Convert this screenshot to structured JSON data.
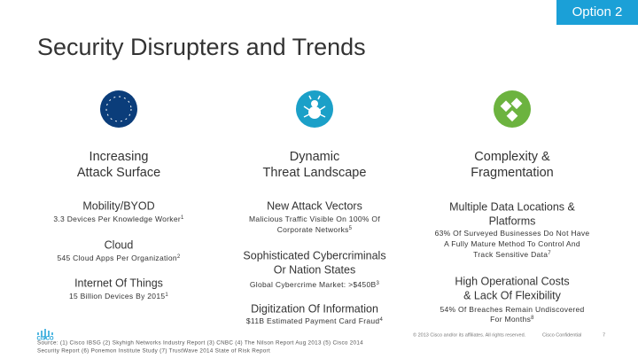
{
  "badge": "Option 2",
  "title": "Security Disrupters and Trends",
  "columns": [
    {
      "heading": [
        "Increasing",
        "Attack Surface"
      ],
      "items": [
        {
          "label": [
            "Mobility/BYOD"
          ],
          "detail": [
            "3.3 Devices Per Knowledge Worker"
          ],
          "note": "1"
        },
        {
          "label": [
            "Cloud"
          ],
          "detail": [
            "545 Cloud Apps Per Organization"
          ],
          "note": "2"
        },
        {
          "label": [
            "Internet Of Things"
          ],
          "detail": [
            "15 Billion Devices By 2015"
          ],
          "note": "1"
        }
      ]
    },
    {
      "heading": [
        "Dynamic",
        "Threat Landscape"
      ],
      "items": [
        {
          "label": [
            "New Attack Vectors"
          ],
          "detail": [
            "Malicious Traffic Visible On 100% Of",
            "Corporate Networks"
          ],
          "note": "5"
        },
        {
          "label": [
            "Sophisticated Cybercriminals",
            "Or Nation States"
          ],
          "detail": [
            "Global Cybercrime Market: >$450B"
          ],
          "note": "3"
        },
        {
          "label": [
            "Digitization Of Information"
          ],
          "detail": [
            "$11B Estimated Payment Card Fraud"
          ],
          "note": "4"
        }
      ]
    },
    {
      "heading": [
        "Complexity &",
        "Fragmentation"
      ],
      "items": [
        {
          "label": [
            "Multiple Data Locations &",
            "Platforms"
          ],
          "detail": [
            "63% Of Surveyed Businesses Do Not Have",
            "A Fully Mature Method To Control And",
            "Track Sensitive Data"
          ],
          "note": "7"
        },
        {
          "label": [
            "High Operational Costs",
            "& Lack Of Flexibility"
          ],
          "detail": [
            "54% Of Breaches Remain Undiscovered",
            "For Months"
          ],
          "note": "8"
        }
      ]
    }
  ],
  "logo": "CISCO",
  "source": [
    "Source: (1) Cisco IBSG (2) Skyhigh Networks Industry Report (3) CNBC (4) The Nilson Report Aug 2013 (5) Cisco 2014",
    "Security Report (6) Ponemon Institute Study (7) TrustWave 2014 State of Risk Report"
  ],
  "copyright": "© 2013 Cisco and/or its affiliates. All rights reserved.",
  "confidential": "Cisco Confidential",
  "page": "7"
}
